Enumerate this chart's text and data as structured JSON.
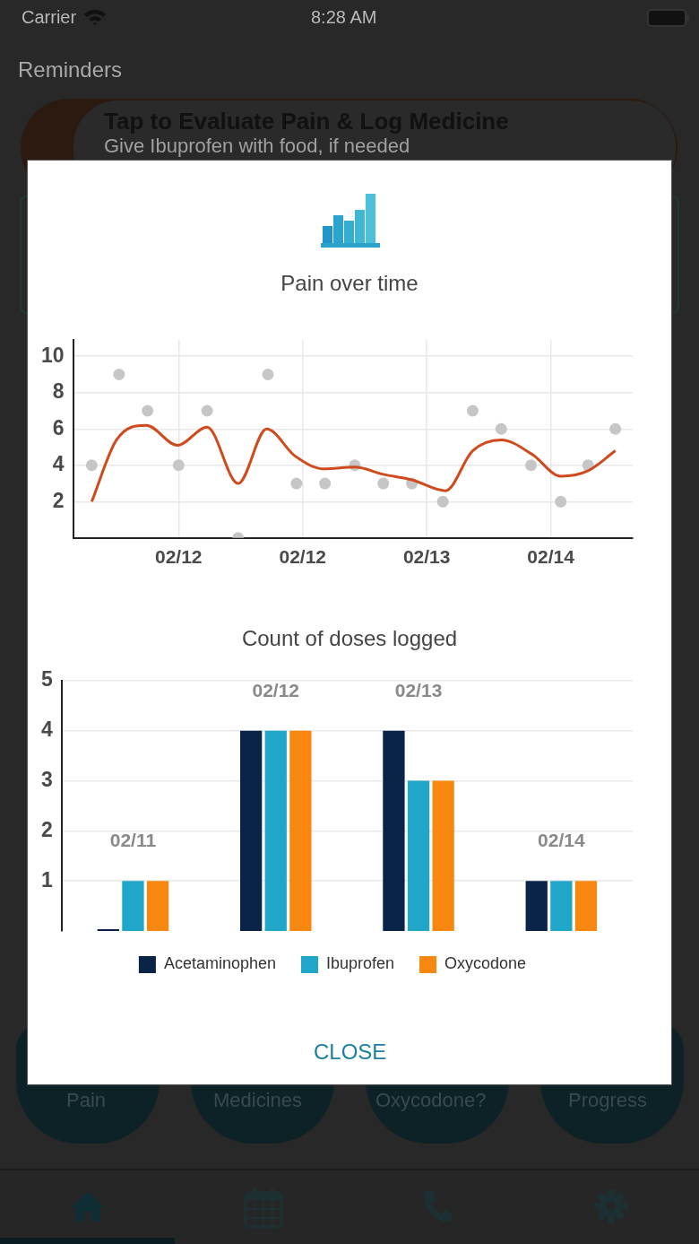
{
  "chart_data": [
    {
      "type": "line",
      "title": "Pain over time",
      "annotations": [
        "Carrier",
        "8:28 AM",
        "Reminders",
        "Tap to Evaluate Pain & Log Medicine",
        "Give Ibuprofen with food, if needed"
      ],
      "series": [
        {
          "type": "scatter",
          "marker": "circle",
          "color": "#c6c6c6",
          "x": [
            "--02-10T07:12",
            "--02-10T12:29",
            "--02-10T18:00",
            "--02-11T00:00",
            "--02-11T05:31",
            "--02-11T11:31",
            "--02-11T17:17",
            "--02-11T22:48",
            "--02-12T04:19",
            "--02-12T10:05",
            "--02-12T15:36",
            "--02-12T21:07",
            "--02-13T03:07",
            "--02-13T08:53",
            "--02-13T14:24",
            "--02-13T20:10",
            "--02-14T01:55",
            "--02-14T07:12",
            "--02-14T12:29"
          ],
          "values": [
            4,
            9,
            7,
            4,
            7,
            0,
            9,
            3,
            3,
            4,
            3,
            3,
            2,
            7,
            6,
            4,
            2,
            4,
            6
          ]
        },
        {
          "type": "line",
          "marker": "none",
          "color": "#cf4a1c",
          "x": [
            "--02-10T07:12",
            "--02-10T12:00",
            "--02-10T17:46",
            "--02-10T23:46",
            "--02-11T05:31",
            "--02-11T11:31",
            "--02-11T17:02",
            "--02-11T22:34",
            "--02-12T04:05",
            "--02-12T10:05",
            "--02-12T15:36",
            "--02-12T21:07",
            "--02-13T03:36",
            "--02-13T08:53",
            "--02-13T14:24",
            "--02-13T20:24",
            "--02-14T01:55",
            "--02-14T07:12",
            "--02-14T12:29"
          ],
          "values": [
            2.0,
            5.4,
            6.2,
            5.1,
            6.1,
            3.0,
            6.0,
            4.5,
            3.8,
            3.9,
            3.5,
            3.2,
            2.6,
            4.8,
            5.4,
            4.6,
            3.4,
            3.7,
            4.8
          ]
        }
      ],
      "xlim": [
        "--02-10T03:36",
        "--02-14T15:50"
      ],
      "xticks": [
        {
          "value": "--02-11",
          "label": "02/12"
        },
        {
          "value": "--02-12",
          "label": "02/12"
        },
        {
          "value": "--02-13",
          "label": "02/13"
        },
        {
          "value": "--02-14",
          "label": "02/14"
        }
      ],
      "ylim": [
        0,
        10.9
      ],
      "yticks": [
        2,
        4,
        6,
        8,
        10
      ],
      "grid": true,
      "line_style": "solid"
    },
    {
      "type": "bar",
      "title": "Count of doses logged",
      "annotations": [
        "CLOSE",
        "Pain",
        "Medicines",
        "Oxycodone?",
        "Progress"
      ],
      "categories": [
        "02/11",
        "02/12",
        "02/13",
        "02/14"
      ],
      "series": [
        {
          "name": "Acetaminophen",
          "color": "#0a2448",
          "values": [
            0,
            4,
            4,
            1
          ]
        },
        {
          "name": "Ibuprofen",
          "color": "#20a6c8",
          "values": [
            1,
            4,
            3,
            1
          ]
        },
        {
          "name": "Oxycodone",
          "color": "#f7870f",
          "values": [
            1,
            4,
            3,
            1
          ]
        }
      ],
      "ylim": [
        0,
        5
      ],
      "yticks": [
        1,
        2,
        3,
        4,
        5
      ],
      "grid": "y",
      "legend": "bottom"
    }
  ]
}
